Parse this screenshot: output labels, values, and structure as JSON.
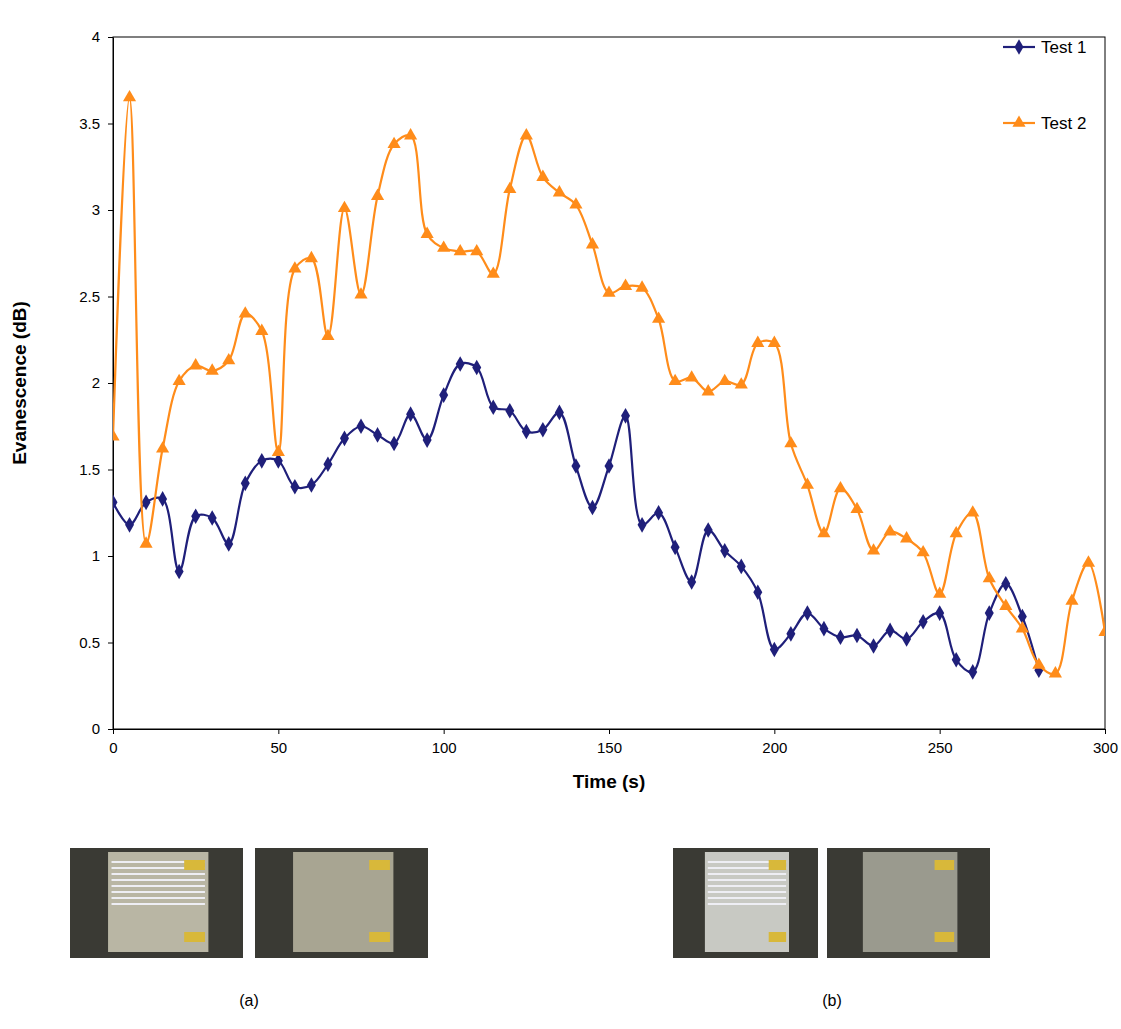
{
  "chart_data": {
    "type": "line",
    "x_label": "Time (s)",
    "y_label": "Evanescence (dB)",
    "x": [
      0,
      5,
      10,
      15,
      20,
      25,
      30,
      35,
      40,
      45,
      50,
      55,
      60,
      65,
      70,
      75,
      80,
      85,
      90,
      95,
      100,
      105,
      110,
      115,
      120,
      125,
      130,
      135,
      140,
      145,
      150,
      155,
      160,
      165,
      170,
      175,
      180,
      185,
      190,
      195,
      200,
      205,
      210,
      215,
      220,
      225,
      230,
      235,
      240,
      245,
      250,
      255,
      260,
      265,
      270,
      275,
      280,
      285,
      290,
      295,
      300
    ],
    "series": [
      {
        "name": "Test 1",
        "color": "#1f1f7a",
        "marker": "diamond",
        "line_style": "solid",
        "values": [
          1.31,
          1.18,
          1.31,
          1.33,
          0.91,
          1.23,
          1.22,
          1.07,
          1.42,
          1.55,
          1.55,
          1.4,
          1.41,
          1.53,
          1.68,
          1.75,
          1.7,
          1.65,
          1.82,
          1.67,
          1.93,
          2.11,
          2.09,
          1.86,
          1.84,
          1.72,
          1.73,
          1.83,
          1.52,
          1.28,
          1.52,
          1.81,
          1.18,
          1.25,
          1.05,
          0.85,
          1.15,
          1.03,
          0.94,
          0.79,
          0.46,
          0.55,
          0.67,
          0.58,
          0.53,
          0.54,
          0.48,
          0.57,
          0.52,
          0.62,
          0.67,
          0.4,
          0.33,
          0.67,
          0.84,
          0.65,
          0.34,
          null,
          null,
          null,
          null
        ]
      },
      {
        "name": "Test 2",
        "color": "#ff8c1a",
        "marker": "triangle",
        "line_style": "solid",
        "values": [
          1.69,
          3.65,
          1.07,
          1.62,
          2.01,
          2.1,
          2.07,
          2.13,
          2.4,
          2.3,
          1.6,
          2.66,
          2.72,
          2.27,
          3.01,
          2.51,
          3.08,
          3.38,
          3.43,
          2.86,
          2.78,
          2.76,
          2.76,
          2.63,
          3.12,
          3.43,
          3.19,
          3.1,
          3.03,
          2.8,
          2.52,
          2.56,
          2.55,
          2.37,
          2.01,
          2.03,
          1.95,
          2.01,
          1.99,
          2.23,
          2.23,
          1.65,
          1.41,
          1.13,
          1.39,
          1.27,
          1.03,
          1.14,
          1.1,
          1.02,
          0.78,
          1.13,
          1.25,
          0.87,
          0.71,
          0.58,
          0.37,
          0.32,
          0.74,
          0.96,
          0.56
        ]
      }
    ],
    "xlim": [
      0,
      300
    ],
    "xticks": [
      0,
      50,
      100,
      150,
      200,
      250,
      300
    ],
    "ylim": [
      0,
      4
    ],
    "yticks": [
      0,
      0.5,
      1,
      1.5,
      2,
      2.5,
      3,
      3.5,
      4
    ],
    "grid": false,
    "legend": "upper right"
  },
  "figure_panels": [
    "(a)",
    "(b)"
  ]
}
